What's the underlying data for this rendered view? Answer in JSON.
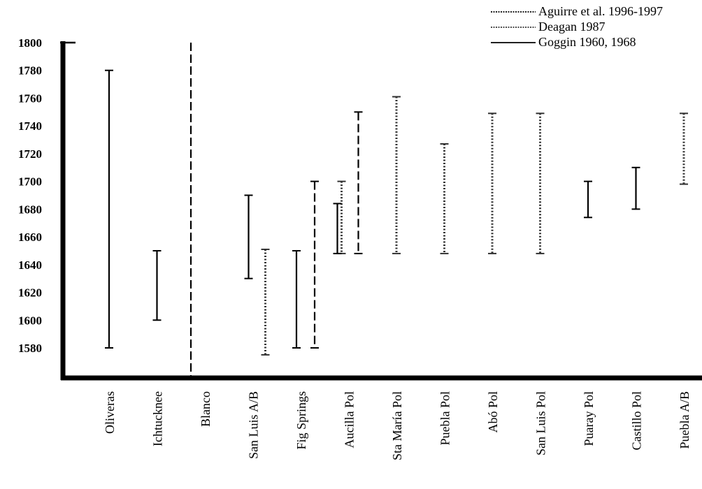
{
  "chart_data": {
    "type": "range",
    "title": "",
    "xlabel": "",
    "ylabel": "",
    "ylim": [
      1560,
      1800
    ],
    "yticks": [
      1800,
      1780,
      1760,
      1740,
      1720,
      1700,
      1680,
      1660,
      1640,
      1620,
      1600,
      1580
    ],
    "categories": [
      "Oliveras",
      "Ichtucknee",
      "Blanco",
      "San Luis A/B",
      "Fig Springs",
      "Aucilla Pol",
      "Sta María Pol",
      "Puebla Pol",
      "Abó Pol",
      "San Luis Pol",
      "Puaray Pol",
      "Castillo Pol",
      "Puebla A/B"
    ],
    "legend_position": "top-right",
    "series": [
      {
        "name": "Aguirre et al. 1996-1997",
        "style": "dashed",
        "ranges": [
          {
            "category": "Blanco",
            "start": 1560,
            "end": 1800
          },
          {
            "category": "Fig Springs",
            "start": 1580,
            "end": 1700
          },
          {
            "category": "Aucilla Pol",
            "start": 1648,
            "end": 1750
          }
        ]
      },
      {
        "name": "Deagan 1987",
        "style": "dotted",
        "ranges": [
          {
            "category": "San Luis A/B",
            "start": 1575,
            "end": 1651
          },
          {
            "category": "Aucilla Pol",
            "start": 1648,
            "end": 1700
          },
          {
            "category": "Sta María Pol",
            "start": 1648,
            "end": 1761
          },
          {
            "category": "Puebla Pol",
            "start": 1648,
            "end": 1727
          },
          {
            "category": "Abó Pol",
            "start": 1648,
            "end": 1749
          },
          {
            "category": "San Luis Pol",
            "start": 1648,
            "end": 1749
          },
          {
            "category": "Puebla A/B",
            "start": 1698,
            "end": 1749
          }
        ]
      },
      {
        "name": "Goggin 1960, 1968",
        "style": "solid",
        "ranges": [
          {
            "category": "Oliveras",
            "start": 1580,
            "end": 1780
          },
          {
            "category": "Ichtucknee",
            "start": 1600,
            "end": 1650
          },
          {
            "category": "San Luis A/B",
            "start": 1630,
            "end": 1690
          },
          {
            "category": "Fig Springs",
            "start": 1580,
            "end": 1650
          },
          {
            "category": "Aucilla Pol",
            "start": 1648,
            "end": 1684
          },
          {
            "category": "Puaray Pol",
            "start": 1674,
            "end": 1700
          },
          {
            "category": "Castillo Pol",
            "start": 1680,
            "end": 1710
          }
        ]
      }
    ]
  }
}
